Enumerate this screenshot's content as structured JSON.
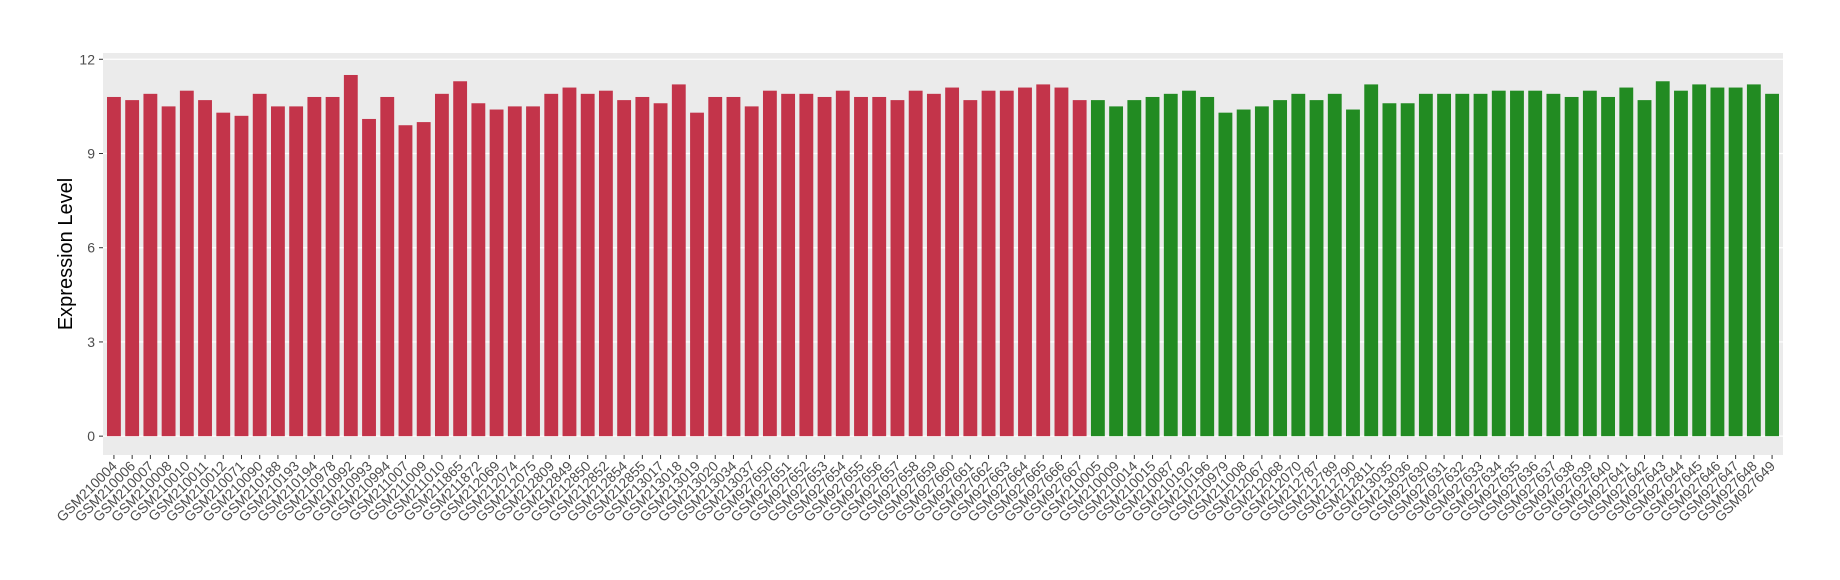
{
  "chart_data": {
    "type": "bar",
    "y_label": "Expression Level",
    "ylim": [
      -0.6,
      12.2
    ],
    "yticks": [
      0,
      3,
      6,
      9,
      12
    ],
    "grid": true,
    "series": [
      {
        "color": "#c3344a",
        "categories": [
          "GSM210004",
          "GSM210006",
          "GSM210007",
          "GSM210008",
          "GSM210010",
          "GSM210011",
          "GSM210012",
          "GSM210071",
          "GSM210090",
          "GSM210188",
          "GSM210193",
          "GSM210194",
          "GSM210978",
          "GSM210992",
          "GSM210993",
          "GSM210994",
          "GSM211007",
          "GSM211009",
          "GSM211010",
          "GSM211865",
          "GSM211872",
          "GSM212069",
          "GSM212074",
          "GSM212075",
          "GSM212809",
          "GSM212849",
          "GSM212850",
          "GSM212852",
          "GSM212854",
          "GSM212855",
          "GSM213017",
          "GSM213018",
          "GSM213019",
          "GSM213020",
          "GSM213034",
          "GSM213037",
          "GSM927650",
          "GSM927651",
          "GSM927652",
          "GSM927653",
          "GSM927654",
          "GSM927655",
          "GSM927656",
          "GSM927657",
          "GSM927658",
          "GSM927659",
          "GSM927660",
          "GSM927661",
          "GSM927662",
          "GSM927663",
          "GSM927664",
          "GSM927665",
          "GSM927666",
          "GSM927667"
        ],
        "values": [
          10.8,
          10.7,
          10.9,
          10.5,
          11.0,
          10.7,
          10.3,
          10.2,
          10.9,
          10.5,
          10.5,
          10.8,
          10.8,
          11.5,
          10.1,
          10.8,
          9.9,
          10.0,
          10.9,
          11.3,
          10.6,
          10.4,
          10.5,
          10.5,
          10.9,
          11.1,
          10.9,
          11.0,
          10.7,
          10.8,
          10.6,
          11.2,
          10.3,
          10.8,
          10.8,
          10.5,
          11.0,
          10.9,
          10.9,
          10.8,
          11.0,
          10.8,
          10.8,
          10.7,
          11.0,
          10.9,
          11.1,
          10.7,
          11.0,
          11.0,
          11.1,
          11.2,
          11.1,
          10.7
        ]
      },
      {
        "color": "#228b22",
        "categories": [
          "GSM210005",
          "GSM210009",
          "GSM210014",
          "GSM210015",
          "GSM210087",
          "GSM210192",
          "GSM210196",
          "GSM210979",
          "GSM211008",
          "GSM212067",
          "GSM212068",
          "GSM212070",
          "GSM212787",
          "GSM212789",
          "GSM212790",
          "GSM212811",
          "GSM213035",
          "GSM213036",
          "GSM927630",
          "GSM927631",
          "GSM927632",
          "GSM927633",
          "GSM927634",
          "GSM927635",
          "GSM927636",
          "GSM927637",
          "GSM927638",
          "GSM927639",
          "GSM927640",
          "GSM927641",
          "GSM927642",
          "GSM927643",
          "GSM927644",
          "GSM927645",
          "GSM927646",
          "GSM927647",
          "GSM927648",
          "GSM927649"
        ],
        "values": [
          10.7,
          10.5,
          10.7,
          10.8,
          10.9,
          11.0,
          10.8,
          10.3,
          10.4,
          10.5,
          10.7,
          10.9,
          10.7,
          10.9,
          10.4,
          11.2,
          10.6,
          10.6,
          10.9,
          10.9,
          10.9,
          10.9,
          11.0,
          11.0,
          11.0,
          10.9,
          10.8,
          11.0,
          10.8,
          11.1,
          10.7,
          11.3,
          11.0,
          11.2,
          11.1,
          11.1,
          11.2,
          10.9
        ]
      }
    ]
  }
}
